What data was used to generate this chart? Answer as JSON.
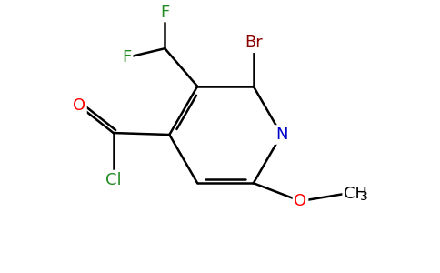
{
  "background_color": "#ffffff",
  "figure_width": 4.84,
  "figure_height": 3.0,
  "dpi": 100,
  "bond_lw": 1.8,
  "bond_color": "#000000",
  "atom_colors": {
    "F": "#228B22",
    "Br": "#8B0000",
    "N": "#0000CD",
    "O": "#FF0000",
    "Cl": "#228B22",
    "C": "#000000"
  }
}
